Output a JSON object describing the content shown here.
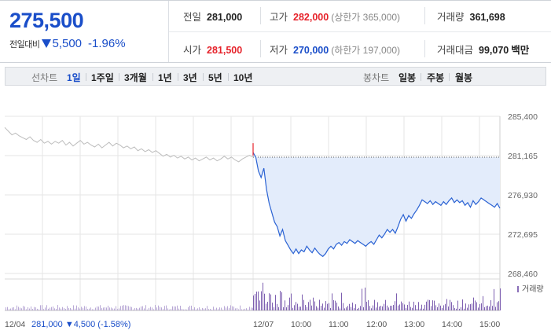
{
  "summary": {
    "current_price": "275,500",
    "change_label": "전일대비",
    "change_value": "5,500",
    "change_percent": "-1.96%",
    "change_color": "#1a4ec9",
    "up_color": "#e6222a",
    "prev_close_label": "전일",
    "prev_close": "281,000",
    "high_label": "고가",
    "high": "282,000",
    "upper_limit": "(상한가 365,000)",
    "volume_label": "거래량",
    "volume": "361,698",
    "open_label": "시가",
    "open": "281,500",
    "low_label": "저가",
    "low": "270,000",
    "lower_limit": "(하한가 197,000)",
    "amount_label": "거래대금",
    "amount": "99,070",
    "amount_unit": "백만"
  },
  "toolbar": {
    "line_chart_label": "선차트",
    "periods": [
      "1일",
      "1주일",
      "3개월",
      "1년",
      "3년",
      "5년",
      "10년"
    ],
    "active_period": "1일",
    "candle_chart_label": "봉차트",
    "candle_periods": [
      "일봉",
      "주봉",
      "월봉"
    ]
  },
  "chart_data": {
    "type": "line",
    "y_ticks": [
      "285,400",
      "281,165",
      "276,930",
      "272,695",
      "268,460"
    ],
    "ylim": [
      268460,
      285400
    ],
    "reference_price": 281000,
    "x_ticks": [
      "12/04",
      "12/07",
      "10:00",
      "11:00",
      "12:00",
      "13:00",
      "14:00",
      "15:00"
    ],
    "prev_day_label": "12/04",
    "prev_day_summary": "281,000 ▼4,500 (-1.58%)",
    "volume_label": "거래량",
    "prev_day_series": [
      284200,
      283800,
      283400,
      283600,
      283300,
      283100,
      282900,
      283200,
      282800,
      282600,
      282900,
      282500,
      282700,
      282400,
      282700,
      282500,
      282800,
      282300,
      282600,
      282200,
      282500,
      282800,
      282400,
      282600,
      282300,
      282100,
      282400,
      282000,
      282300,
      282600,
      282200,
      282500,
      282300,
      282000,
      282200,
      281900,
      282100,
      281700,
      281900,
      281600,
      281800,
      281500,
      281700,
      281400,
      281100,
      281300,
      281000,
      281200,
      280900,
      281100,
      280800,
      281000,
      280700,
      280900,
      280600,
      280800,
      281000,
      280700,
      280900,
      280600,
      280800,
      281100,
      280800,
      281000,
      280700,
      280500,
      280800,
      281000,
      281200,
      281000
    ],
    "today_series": [
      281500,
      281000,
      279500,
      278800,
      279800,
      277500,
      276000,
      275000,
      274000,
      273500,
      272500,
      273200,
      272000,
      271500,
      271000,
      270600,
      271100,
      270600,
      271000,
      270800,
      271400,
      271000,
      270700,
      271200,
      270800,
      270500,
      270300,
      270600,
      271100,
      271400,
      271100,
      271600,
      271800,
      271500,
      271900,
      271700,
      272100,
      271900,
      271700,
      272000,
      271800,
      271600,
      271400,
      271700,
      271900,
      271600,
      272100,
      272600,
      272300,
      272700,
      273200,
      272900,
      273200,
      272800,
      273500,
      274300,
      274800,
      274100,
      274700,
      274400,
      274900,
      275300,
      275800,
      276400,
      276200,
      276000,
      276300,
      275900,
      276200,
      276000,
      275800,
      276200,
      275900,
      276300,
      276600,
      276100,
      276400,
      276100,
      276300,
      275800,
      276100,
      275600,
      276300,
      275900,
      276200,
      276600,
      276400,
      276200,
      276000,
      275800,
      275600,
      276000,
      275500
    ]
  }
}
